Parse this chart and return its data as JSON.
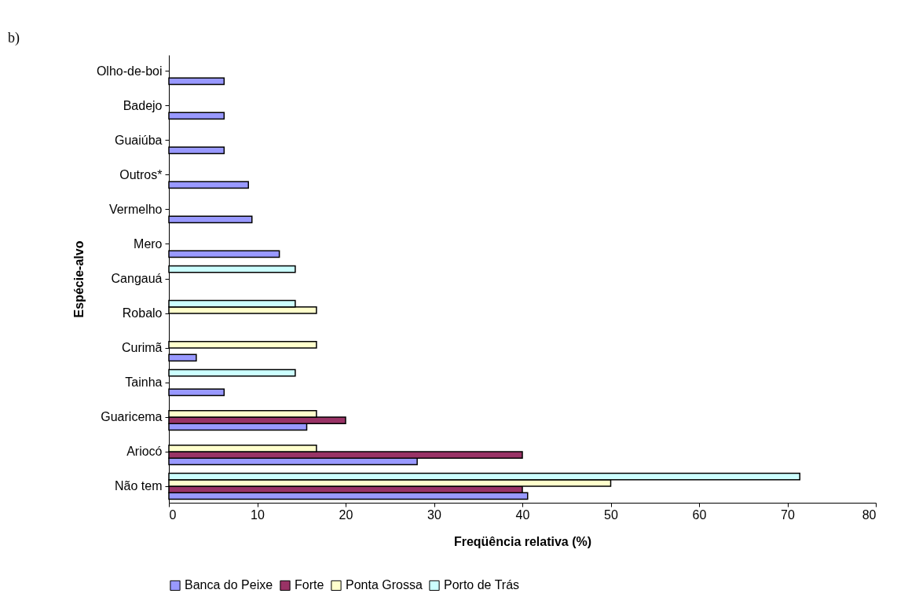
{
  "chart_data": {
    "type": "bar",
    "orientation": "horizontal",
    "xlabel": "Freqüência relativa (%)",
    "ylabel": "Espécie-alvo",
    "annotations": [
      "b)"
    ],
    "categories": [
      "Olho-de-boi",
      "Badejo",
      "Guaiúba",
      "Outros*",
      "Vermelho",
      "Mero",
      "Cangauá",
      "Robalo",
      "Curimã",
      "Tainha",
      "Guaricema",
      "Ariocó",
      "Não tem"
    ],
    "series": [
      {
        "name": "Banca do Peixe",
        "color": "#9999ff",
        "values": [
          6.25,
          6.25,
          6.25,
          9.0,
          9.4,
          12.5,
          null,
          null,
          3.1,
          6.25,
          15.6,
          28.1,
          40.6
        ]
      },
      {
        "name": "Forte",
        "color": "#993366",
        "values": [
          null,
          null,
          null,
          null,
          null,
          null,
          null,
          null,
          null,
          null,
          20,
          40,
          40
        ]
      },
      {
        "name": "Ponta Grossa",
        "color": "#ffffcc",
        "values": [
          null,
          null,
          null,
          null,
          null,
          null,
          null,
          16.7,
          16.7,
          null,
          16.7,
          16.7,
          50
        ]
      },
      {
        "name": "Porto de Trás",
        "color": "#ccffff",
        "values": [
          null,
          null,
          null,
          null,
          null,
          null,
          14.3,
          14.3,
          null,
          14.3,
          null,
          null,
          71.4
        ]
      }
    ],
    "xlim": [
      0,
      80
    ],
    "xticks": [
      0,
      10,
      20,
      30,
      40,
      50,
      60,
      70,
      80
    ],
    "grid": false,
    "legend": "bottom"
  }
}
